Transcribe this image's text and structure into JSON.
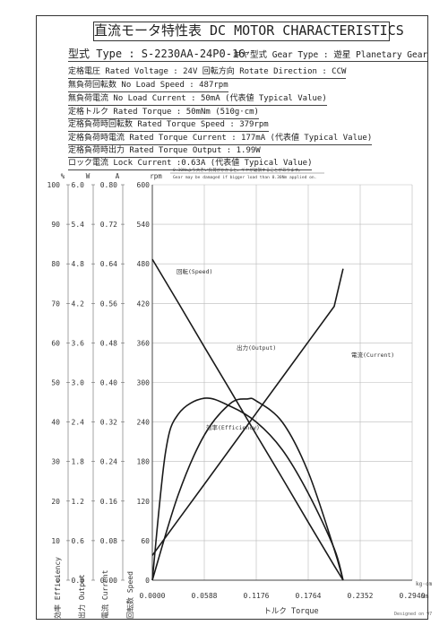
{
  "header": {
    "title": "直流モータ特性表 DC MOTOR CHARACTERISTICS",
    "type_line": "型式 Type : S-2230AA-24P0-16",
    "gear_line": "ギヤ型式 Gear Type : 遊星  Planetary Gear"
  },
  "specs": [
    "定格電圧 Rated Voltage : 24V   回転方向 Rotate Direction : CCW",
    "無負荷回転数 No Load Speed : 487rpm",
    "無負荷電流 No Load Current : 50mA (代表値 Typical Value)",
    "定格トルク Rated Torque : 50mNm (510g·cm)",
    "定格負荷時回転数 Rated Torque Speed : 379rpm",
    "定格負荷時電流 Rated Torque Current : 177mA (代表値 Typical Value)",
    "定格負荷時出力 Rated Torque Output : 1.99W",
    "ロック電流 Lock Current :0.63A (代表値 Typical Value)"
  ],
  "warning": {
    "jp": "0.30Nmより大きい負荷がかかると、ギヤが破損することがあります。",
    "en": "Gear may be damaged if bigger load than 0.30Nm applied on."
  },
  "signature": "Designed on 97",
  "chart_data": {
    "type": "line",
    "x_label": "トルク Torque",
    "x_unit_top": "kg·cm",
    "x_unit_bottom": "Nm",
    "x_ticks": [
      "0.0000",
      "0.0588",
      "0.1176",
      "0.1764",
      "0.2352",
      "0.2940"
    ],
    "xlim": [
      0,
      0.294
    ],
    "axes": [
      {
        "unit": "%",
        "label": "効率 Efficiency",
        "ticks": [
          "100",
          "90",
          "80",
          "70",
          "60",
          "50",
          "40",
          "30",
          "20",
          "10",
          "0"
        ],
        "lim": [
          0,
          100
        ]
      },
      {
        "unit": "W",
        "label": "出力 Output",
        "ticks": [
          "6.0",
          "5.4",
          "4.8",
          "4.2",
          "3.6",
          "3.0",
          "2.4",
          "1.8",
          "1.2",
          "0.6",
          "0.0"
        ],
        "lim": [
          0,
          6
        ]
      },
      {
        "unit": "A",
        "label": "電流 Current",
        "ticks": [
          "0.80",
          "0.72",
          "0.64",
          "0.56",
          "0.48",
          "0.40",
          "0.32",
          "0.24",
          "0.16",
          "0.08",
          "0.00"
        ],
        "lim": [
          0,
          0.8
        ]
      },
      {
        "unit": "rpm",
        "label": "回転数 Speed",
        "ticks": [
          "600",
          "540",
          "480",
          "420",
          "360",
          "300",
          "240",
          "180",
          "120",
          "60",
          "0"
        ],
        "lim": [
          0,
          600
        ]
      }
    ],
    "series": [
      {
        "name": "回転(Speed)",
        "axis": "rpm",
        "points": [
          [
            0,
            487
          ],
          [
            0.0294,
            421
          ],
          [
            0.0588,
            354
          ],
          [
            0.0882,
            288
          ],
          [
            0.1176,
            221
          ],
          [
            0.147,
            155
          ],
          [
            0.1764,
            88
          ],
          [
            0.2058,
            22
          ],
          [
            0.2158,
            0
          ]
        ]
      },
      {
        "name": "電流(Current)",
        "axis": "A",
        "points": [
          [
            0,
            0.05
          ],
          [
            0.0294,
            0.122
          ],
          [
            0.0588,
            0.194
          ],
          [
            0.0882,
            0.266
          ],
          [
            0.1176,
            0.338
          ],
          [
            0.147,
            0.41
          ],
          [
            0.1764,
            0.482
          ],
          [
            0.2058,
            0.554
          ],
          [
            0.2158,
            0.63
          ]
        ]
      },
      {
        "name": "出力(Output)",
        "axis": "W",
        "points": [
          [
            0,
            0
          ],
          [
            0.0294,
            1.3
          ],
          [
            0.0588,
            2.2
          ],
          [
            0.0882,
            2.68
          ],
          [
            0.1076,
            2.75
          ],
          [
            0.1176,
            2.72
          ],
          [
            0.147,
            2.4
          ],
          [
            0.1764,
            1.64
          ],
          [
            0.2058,
            0.47
          ],
          [
            0.2158,
            0
          ]
        ]
      },
      {
        "name": "効率(Efficiency)",
        "axis": "%",
        "points": [
          [
            0,
            0
          ],
          [
            0.0147,
            32
          ],
          [
            0.0294,
            42
          ],
          [
            0.0588,
            46
          ],
          [
            0.0882,
            44
          ],
          [
            0.1176,
            40
          ],
          [
            0.147,
            33
          ],
          [
            0.1764,
            22
          ],
          [
            0.2058,
            8
          ],
          [
            0.2158,
            0
          ]
        ]
      }
    ]
  }
}
